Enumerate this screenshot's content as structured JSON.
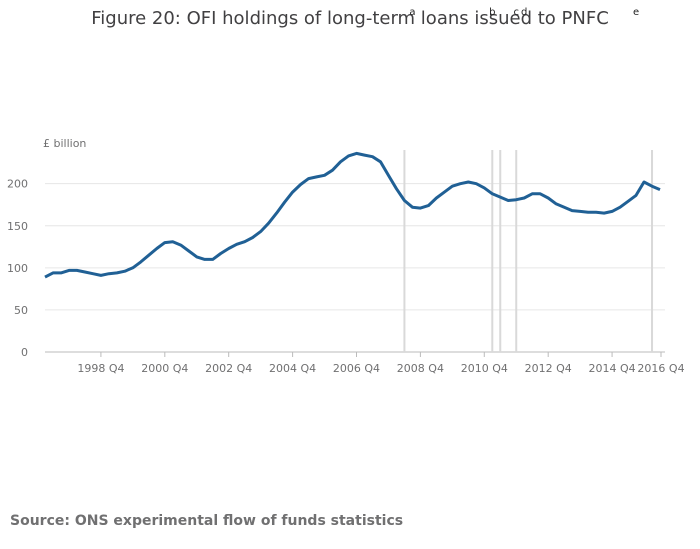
{
  "chart_data": {
    "type": "line",
    "title": "Figure 20: OFI holdings of long-term loans issued to PNFC",
    "ylabel": "£ billion",
    "ylim": [
      0,
      240
    ],
    "yticks": [
      0,
      50,
      100,
      150,
      200
    ],
    "xlim": [
      1997.0,
      2016.25
    ],
    "grid": true,
    "xtick_labels": [
      "1998 Q4",
      "2000 Q4",
      "2002 Q4",
      "2004 Q4",
      "2006 Q4",
      "2008 Q4",
      "2010 Q4",
      "2012 Q4",
      "2014 Q4",
      "2016 Q4"
    ],
    "xtick_values": [
      1998.75,
      2000.75,
      2002.75,
      2004.75,
      2006.75,
      2008.75,
      2010.75,
      2012.75,
      2014.75,
      2016.75
    ],
    "series": [
      {
        "name": "OFI holdings of long-term loans",
        "color": "#206095",
        "x": [
          1997.0,
          1997.25,
          1997.5,
          1997.75,
          1998.0,
          1998.25,
          1998.5,
          1998.75,
          1999.0,
          1999.25,
          1999.5,
          1999.75,
          2000.0,
          2000.25,
          2000.5,
          2000.75,
          2001.0,
          2001.25,
          2001.5,
          2001.75,
          2002.0,
          2002.25,
          2002.5,
          2002.75,
          2003.0,
          2003.25,
          2003.5,
          2003.75,
          2004.0,
          2004.25,
          2004.5,
          2004.75,
          2005.0,
          2005.25,
          2005.5,
          2005.75,
          2006.0,
          2006.25,
          2006.5,
          2006.75,
          2007.0,
          2007.25,
          2007.5,
          2007.75,
          2008.0,
          2008.25,
          2008.5,
          2008.75,
          2009.0,
          2009.25,
          2009.5,
          2009.75,
          2010.0,
          2010.25,
          2010.5,
          2010.75,
          2011.0,
          2011.25,
          2011.5,
          2011.75,
          2012.0,
          2012.25,
          2012.5,
          2012.75,
          2013.0,
          2013.25,
          2013.5,
          2013.75,
          2014.0,
          2014.25,
          2014.5,
          2014.75,
          2015.0,
          2015.25,
          2015.5,
          2015.75,
          2016.0,
          2016.25
        ],
        "values": [
          89,
          94,
          94,
          97,
          97,
          95,
          93,
          91,
          93,
          94,
          96,
          100,
          107,
          115,
          123,
          130,
          131,
          127,
          120,
          113,
          110,
          110,
          117,
          123,
          128,
          131,
          136,
          143,
          153,
          165,
          178,
          190,
          199,
          206,
          208,
          210,
          216,
          226,
          233,
          236,
          234,
          232,
          226,
          210,
          194,
          180,
          172,
          171,
          174,
          183,
          190,
          197,
          200,
          202,
          200,
          195,
          188,
          184,
          180,
          181,
          183,
          188,
          188,
          183,
          176,
          172,
          168,
          167,
          166,
          166,
          165,
          167,
          172,
          179,
          186,
          202,
          197,
          193
        ]
      }
    ],
    "vertical_lines": [
      2008.25,
      2011.0,
      2011.25,
      2011.75,
      2016.0
    ],
    "annotations": [
      "a",
      "b",
      "c",
      "d",
      "e"
    ],
    "annotation_x": [
      2008.5,
      2011.0,
      2011.75,
      2012.0,
      2015.5
    ]
  },
  "source": "Source: ONS experimental flow of funds statistics"
}
